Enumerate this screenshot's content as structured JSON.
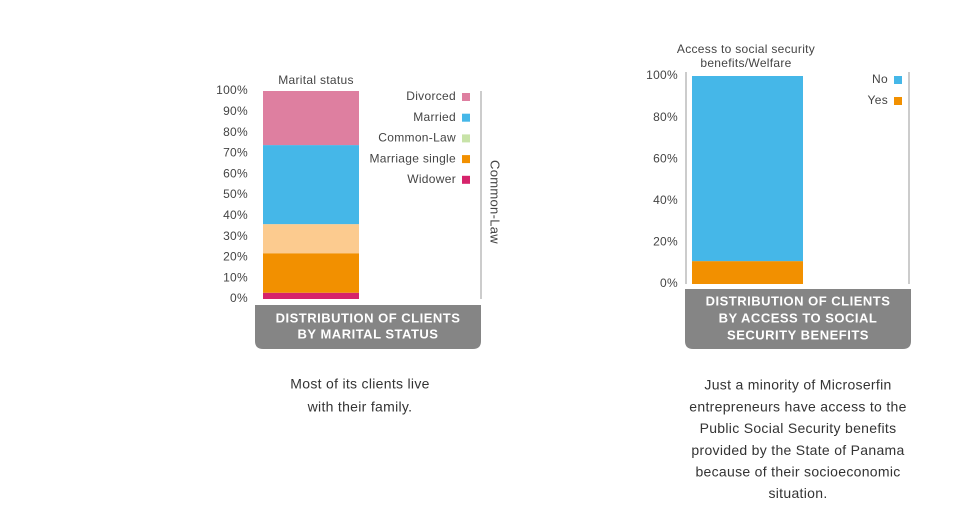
{
  "chart_data": [
    {
      "type": "stacked-bar",
      "title": [
        "Marital status"
      ],
      "banner": [
        "DISTRIBUTION OF CLIENTS",
        "BY MARITAL STATUS"
      ],
      "caption": [
        "Most of its clients live",
        "with their family."
      ],
      "annotation": "Common-Law",
      "categories": [
        null
      ],
      "series": [
        {
          "name": "Divorced",
          "color": "#de7fa0",
          "values": [
            26
          ]
        },
        {
          "name": "Married",
          "color": "#45b7e8",
          "values": [
            38
          ]
        },
        {
          "name": "Common-Law",
          "color": "#fccb8f",
          "legend_color": "#c8e3a8",
          "values": [
            14
          ]
        },
        {
          "name": "Marriage single",
          "color": "#f29000",
          "values": [
            19
          ]
        },
        {
          "name": "Widower",
          "color": "#d6236b",
          "values": [
            3
          ]
        }
      ],
      "ylim": [
        0,
        100
      ],
      "yticks": [
        {
          "value": 0,
          "label": "0%"
        },
        {
          "value": 10,
          "label": "10%"
        },
        {
          "value": 20,
          "label": "20%"
        },
        {
          "value": 30,
          "label": "30%"
        },
        {
          "value": 40,
          "label": "40%"
        },
        {
          "value": 50,
          "label": "50%"
        },
        {
          "value": 60,
          "label": "60%"
        },
        {
          "value": 70,
          "label": "70%"
        },
        {
          "value": 80,
          "label": "80%"
        },
        {
          "value": 90,
          "label": "90%"
        },
        {
          "value": 100,
          "label": "100%"
        }
      ]
    },
    {
      "type": "stacked-bar",
      "title": [
        "Access to social security",
        "benefits/Welfare"
      ],
      "banner": [
        "DISTRIBUTION OF CLIENTS",
        "BY ACCESS TO SOCIAL",
        "SECURITY BENEFITS"
      ],
      "caption": [
        "Just a minority of Microserfin",
        "entrepreneurs have access to the",
        "Public Social Security benefits",
        "provided by the State of Panama",
        "because of their socioeconomic",
        "situation."
      ],
      "categories": [
        null
      ],
      "series": [
        {
          "name": "No",
          "color": "#45b7e8",
          "values": [
            89
          ]
        },
        {
          "name": "Yes",
          "color": "#f29000",
          "values": [
            11
          ]
        }
      ],
      "ylim": [
        0,
        100
      ],
      "yticks": [
        {
          "value": 0,
          "label": "0%"
        },
        {
          "value": 20,
          "label": "20%"
        },
        {
          "value": 40,
          "label": "40%"
        },
        {
          "value": 60,
          "label": "60%"
        },
        {
          "value": 80,
          "label": "80%"
        },
        {
          "value": 100,
          "label": "100%"
        }
      ]
    }
  ]
}
